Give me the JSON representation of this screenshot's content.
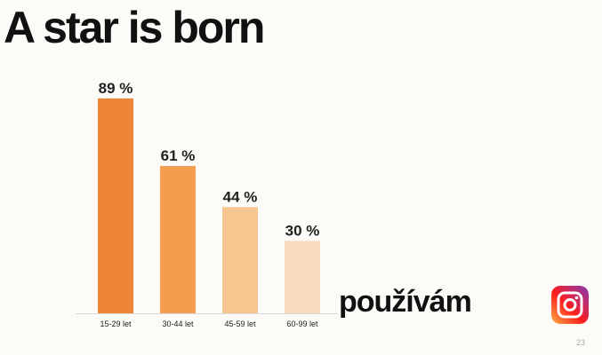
{
  "title": "A star is born",
  "chart_data": {
    "type": "bar",
    "categories": [
      "15-29 let",
      "30-44 let",
      "45-59 let",
      "60-99 let"
    ],
    "values": [
      89,
      61,
      44,
      30
    ],
    "value_labels": [
      "89 %",
      "61 %",
      "44 %",
      "30 %"
    ],
    "colors": [
      "#ef8538",
      "#f39d4f",
      "#f7c690",
      "#f9dcc0"
    ]
  },
  "caption": "používám",
  "page_number": "23"
}
